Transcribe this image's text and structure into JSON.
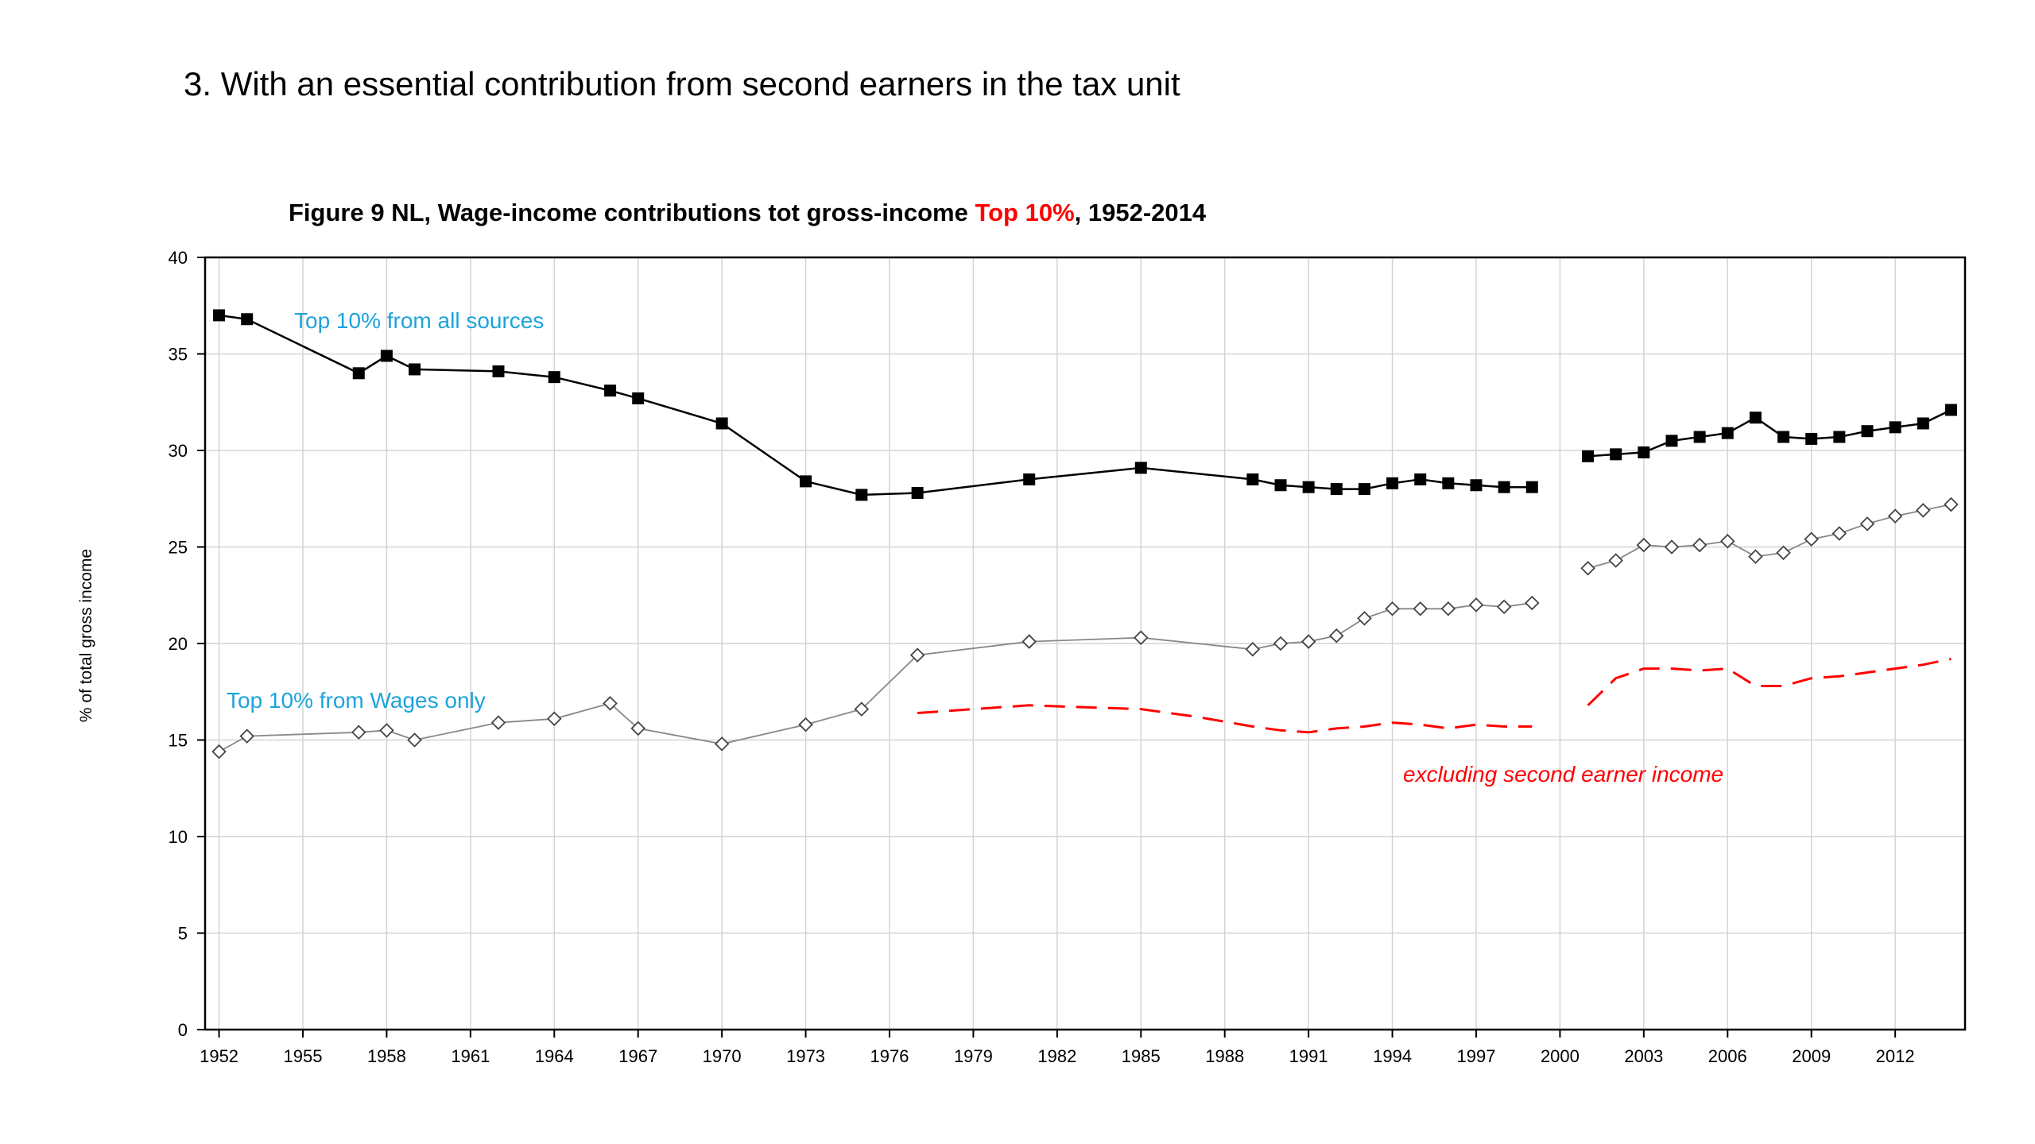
{
  "slide": {
    "title": "3. With an essential contribution from second earners in the tax unit"
  },
  "figure": {
    "title_part1": "Figure 9  NL, Wage-income contributions tot gross-income ",
    "title_highlight": "Top 10%",
    "title_part2": ", 1952-2014"
  },
  "chart_data": {
    "type": "line",
    "ylabel": "% of total gross income",
    "xlabel": "",
    "ylim": [
      0,
      40
    ],
    "yticks": [
      0,
      5,
      10,
      15,
      20,
      25,
      30,
      35,
      40
    ],
    "xlim": [
      1951.5,
      2014.5
    ],
    "xticks": [
      1952,
      1955,
      1958,
      1961,
      1964,
      1967,
      1970,
      1973,
      1976,
      1979,
      1982,
      1985,
      1988,
      1991,
      1994,
      1997,
      2000,
      2003,
      2006,
      2009,
      2012
    ],
    "grid": true,
    "series": [
      {
        "name": "Top 10% from all sources",
        "color": "#000000",
        "marker": "square",
        "label_color": "#1ca3dc",
        "segments": [
          [
            [
              1952,
              37.0
            ],
            [
              1953,
              36.8
            ],
            [
              1957,
              34.0
            ],
            [
              1958,
              34.9
            ],
            [
              1959,
              34.2
            ],
            [
              1962,
              34.1
            ],
            [
              1964,
              33.8
            ],
            [
              1966,
              33.1
            ],
            [
              1967,
              32.7
            ],
            [
              1970,
              31.4
            ],
            [
              1973,
              28.4
            ],
            [
              1975,
              27.7
            ],
            [
              1977,
              27.8
            ],
            [
              1981,
              28.5
            ],
            [
              1985,
              29.1
            ],
            [
              1989,
              28.5
            ],
            [
              1990,
              28.2
            ],
            [
              1991,
              28.1
            ],
            [
              1992,
              28.0
            ],
            [
              1993,
              28.0
            ],
            [
              1994,
              28.3
            ],
            [
              1995,
              28.5
            ],
            [
              1996,
              28.3
            ],
            [
              1997,
              28.2
            ],
            [
              1998,
              28.1
            ],
            [
              1999,
              28.1
            ]
          ],
          [
            [
              2001,
              29.7
            ],
            [
              2002,
              29.8
            ],
            [
              2003,
              29.9
            ],
            [
              2004,
              30.5
            ],
            [
              2005,
              30.7
            ],
            [
              2006,
              30.9
            ],
            [
              2007,
              31.7
            ],
            [
              2008,
              30.7
            ],
            [
              2009,
              30.6
            ],
            [
              2010,
              30.7
            ],
            [
              2011,
              31.0
            ],
            [
              2012,
              31.2
            ],
            [
              2013,
              31.4
            ],
            [
              2014,
              32.1
            ]
          ]
        ]
      },
      {
        "name": "Top 10% from Wages only",
        "color": "#888888",
        "marker": "diamond",
        "label_color": "#1ca3dc",
        "segments": [
          [
            [
              1952,
              14.4
            ],
            [
              1953,
              15.2
            ],
            [
              1957,
              15.4
            ],
            [
              1958,
              15.5
            ],
            [
              1959,
              15.0
            ],
            [
              1962,
              15.9
            ],
            [
              1964,
              16.1
            ],
            [
              1966,
              16.9
            ],
            [
              1967,
              15.6
            ],
            [
              1970,
              14.8
            ],
            [
              1973,
              15.8
            ],
            [
              1975,
              16.6
            ],
            [
              1977,
              19.4
            ],
            [
              1981,
              20.1
            ],
            [
              1985,
              20.3
            ],
            [
              1989,
              19.7
            ],
            [
              1990,
              20.0
            ],
            [
              1991,
              20.1
            ],
            [
              1992,
              20.4
            ],
            [
              1993,
              21.3
            ],
            [
              1994,
              21.8
            ],
            [
              1995,
              21.8
            ],
            [
              1996,
              21.8
            ],
            [
              1997,
              22.0
            ],
            [
              1998,
              21.9
            ],
            [
              1999,
              22.1
            ]
          ],
          [
            [
              2001,
              23.9
            ],
            [
              2002,
              24.3
            ],
            [
              2003,
              25.1
            ],
            [
              2004,
              25.0
            ],
            [
              2005,
              25.1
            ],
            [
              2006,
              25.3
            ],
            [
              2007,
              24.5
            ],
            [
              2008,
              24.7
            ],
            [
              2009,
              25.4
            ],
            [
              2010,
              25.7
            ],
            [
              2011,
              26.2
            ],
            [
              2012,
              26.6
            ],
            [
              2013,
              26.9
            ],
            [
              2014,
              27.2
            ]
          ]
        ]
      },
      {
        "name": "excluding second earner income",
        "color": "#ff0000",
        "marker": "none",
        "dashed": true,
        "label_color": "#ff0000",
        "segments": [
          [
            [
              1977,
              16.4
            ],
            [
              1979,
              16.6
            ],
            [
              1981,
              16.8
            ],
            [
              1983,
              16.7
            ],
            [
              1985,
              16.6
            ],
            [
              1987,
              16.2
            ],
            [
              1989,
              15.7
            ],
            [
              1990,
              15.5
            ],
            [
              1991,
              15.4
            ],
            [
              1992,
              15.6
            ],
            [
              1993,
              15.7
            ],
            [
              1994,
              15.9
            ],
            [
              1995,
              15.8
            ],
            [
              1996,
              15.6
            ],
            [
              1997,
              15.8
            ],
            [
              1998,
              15.7
            ],
            [
              1999,
              15.7
            ]
          ],
          [
            [
              2001,
              16.8
            ],
            [
              2002,
              18.2
            ],
            [
              2003,
              18.7
            ],
            [
              2004,
              18.7
            ],
            [
              2005,
              18.6
            ],
            [
              2006,
              18.7
            ],
            [
              2007,
              17.8
            ],
            [
              2008,
              17.8
            ],
            [
              2009,
              18.2
            ],
            [
              2010,
              18.3
            ],
            [
              2011,
              18.5
            ],
            [
              2012,
              18.7
            ],
            [
              2013,
              18.9
            ],
            [
              2014,
              19.2
            ]
          ]
        ]
      }
    ]
  }
}
